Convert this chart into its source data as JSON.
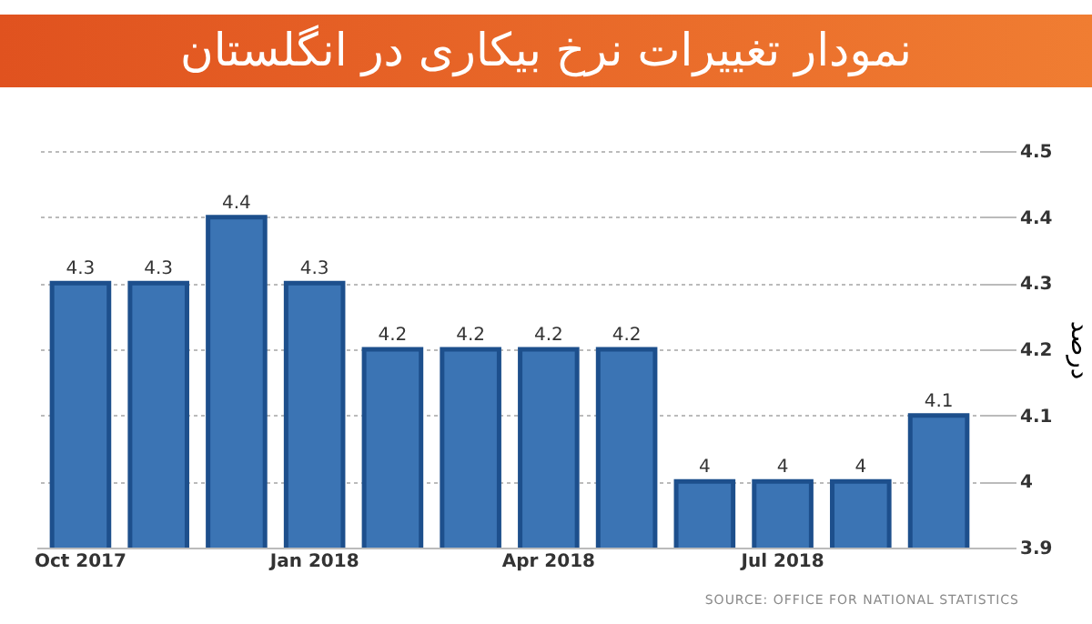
{
  "chart_data": {
    "type": "bar",
    "title": "نمودار تغییرات نرخ بیکاری در انگلستان",
    "ylabel": "درصد",
    "categories": [
      "Oct 2017",
      null,
      null,
      "Jan 2018",
      null,
      null,
      "Apr 2018",
      null,
      null,
      "Jul 2018",
      null,
      null
    ],
    "values": [
      4.3,
      4.3,
      4.4,
      4.3,
      4.2,
      4.2,
      4.2,
      4.2,
      4,
      4,
      4,
      4.1
    ],
    "color": "#3b74b4",
    "ylim": [
      3.9,
      4.5
    ],
    "yticks": [
      3.9,
      4,
      4.1,
      4.2,
      4.3,
      4.4,
      4.5
    ],
    "grid": "y",
    "data_labels": true,
    "annotations": [
      "SOURCE: OFFICE FOR NATIONAL STATISTICS"
    ]
  }
}
